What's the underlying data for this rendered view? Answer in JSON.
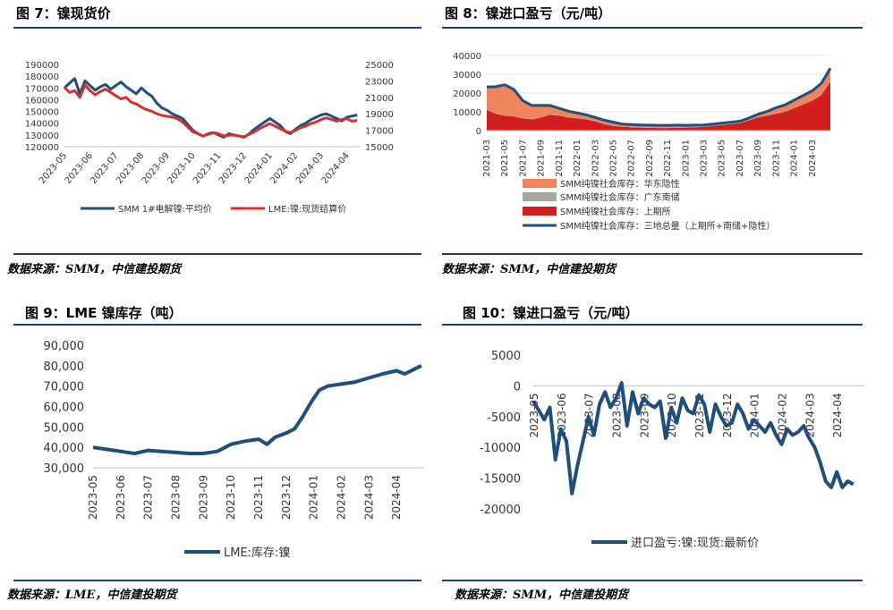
{
  "charts": [
    {
      "title": "图 7：镍现货价",
      "source": "数据来源：SMM，中信建投期货",
      "chart_data": {
        "type": "line",
        "y_left_ticks": [
          "190000",
          "180000",
          "170000",
          "160000",
          "150000",
          "140000",
          "130000",
          "120000"
        ],
        "y_right_ticks": [
          "25000",
          "23000",
          "21000",
          "19000",
          "17000",
          "15000"
        ],
        "x_ticks": [
          "2023-05",
          "2023-06",
          "2023-07",
          "2023-08",
          "2023-09",
          "2023-10",
          "2023-11",
          "2023-12",
          "2024-01",
          "2024-02",
          "2024-03",
          "2024-04"
        ],
        "ylim_left": [
          120000,
          190000
        ],
        "ylim_right": [
          15000,
          25000
        ],
        "series": [
          {
            "name": "SMM 1#电解镍:平均价",
            "axis": "left",
            "color": "#1f4e79",
            "x": [
              0,
              0.2,
              0.4,
              0.6,
              0.8,
              1.0,
              1.2,
              1.4,
              1.6,
              1.8,
              2.0,
              2.2,
              2.4,
              2.6,
              2.8,
              3.0,
              3.2,
              3.4,
              3.6,
              3.8,
              4.0,
              4.2,
              4.4,
              4.6,
              4.8,
              5.0,
              5.2,
              5.4,
              5.6,
              5.8,
              6.0,
              6.2,
              6.4,
              6.6,
              6.8,
              7.0,
              7.2,
              7.4,
              7.6,
              7.8,
              8.0,
              8.2,
              8.4,
              8.6,
              8.8,
              9.0,
              9.2,
              9.4,
              9.6,
              9.8,
              10.0,
              10.2,
              10.4,
              10.6,
              10.8,
              11.0,
              11.2,
              11.4
            ],
            "values": [
              170000,
              174000,
              178000,
              165000,
              176000,
              172000,
              168000,
              171000,
              173000,
              169000,
              172000,
              175000,
              171000,
              168000,
              165000,
              170000,
              166000,
              163000,
              157000,
              153000,
              151000,
              148000,
              146000,
              144000,
              139000,
              134000,
              131000,
              129000,
              131000,
              132000,
              130000,
              128000,
              131000,
              130000,
              129000,
              128000,
              131000,
              135000,
              138000,
              141000,
              144000,
              141000,
              138000,
              133000,
              131000,
              135000,
              138000,
              140000,
              143000,
              145000,
              147000,
              148000,
              146000,
              144000,
              142000,
              145000,
              146000,
              147000
            ]
          },
          {
            "name": "LME:镍:现货结算价",
            "axis": "right",
            "color": "#d62f2f",
            "x": [
              0,
              0.2,
              0.4,
              0.6,
              0.8,
              1.0,
              1.2,
              1.4,
              1.6,
              1.8,
              2.0,
              2.2,
              2.4,
              2.6,
              2.8,
              3.0,
              3.2,
              3.4,
              3.6,
              3.8,
              4.0,
              4.2,
              4.4,
              4.6,
              4.8,
              5.0,
              5.2,
              5.4,
              5.6,
              5.8,
              6.0,
              6.2,
              6.4,
              6.6,
              6.8,
              7.0,
              7.2,
              7.4,
              7.6,
              7.8,
              8.0,
              8.2,
              8.4,
              8.6,
              8.8,
              9.0,
              9.2,
              9.4,
              9.6,
              9.8,
              10.0,
              10.2,
              10.4,
              10.6,
              10.8,
              11.0,
              11.2,
              11.4
            ],
            "values": [
              22200,
              21600,
              21800,
              21000,
              22500,
              21800,
              21300,
              21700,
              22000,
              21600,
              21200,
              20800,
              21000,
              20400,
              20200,
              19800,
              19500,
              19300,
              19000,
              18800,
              18700,
              18600,
              18400,
              18000,
              17400,
              16800,
              16600,
              16300,
              16500,
              16700,
              16600,
              16300,
              16400,
              16400,
              16300,
              16200,
              16500,
              16800,
              17200,
              17500,
              17800,
              17500,
              17200,
              16900,
              16700,
              17000,
              17300,
              17500,
              17800,
              18000,
              18300,
              18500,
              18300,
              18100,
              18300,
              18400,
              18100,
              18200
            ]
          }
        ]
      }
    },
    {
      "title": "图 8：镍进口盈亏（元/吨）",
      "source": "数据来源：SMM，中信建投期货",
      "chart_data": {
        "type": "area",
        "y_ticks": [
          "40000",
          "30000",
          "20000",
          "10000",
          "0"
        ],
        "ylim": [
          0,
          40000
        ],
        "x_ticks": [
          "2021-03",
          "2021-05",
          "2021-07",
          "2021-09",
          "2021-11",
          "2022-01",
          "2022-03",
          "2022-05",
          "2022-07",
          "2022-09",
          "2022-11",
          "2023-01",
          "2023-03",
          "2023-05",
          "2023-07",
          "2023-09",
          "2023-11",
          "2024-01",
          "2024-03"
        ],
        "x": [
          0,
          0.5,
          1,
          1.5,
          2,
          2.5,
          3,
          3.5,
          4,
          4.5,
          5,
          5.5,
          6,
          6.5,
          7,
          7.5,
          8,
          8.5,
          9,
          9.5,
          10,
          10.5,
          11,
          11.5,
          12,
          12.5,
          13,
          13.5,
          14,
          14.5,
          15,
          15.5,
          16,
          16.5,
          17,
          17.5,
          18,
          18.5,
          19
        ],
        "series": [
          {
            "name": "SMM纯镍社会库存：华东隐性",
            "kind": "area",
            "color": "#f0845a",
            "values": [
              12000,
              14000,
              16000,
              14000,
              9000,
              7000,
              6000,
              4500,
              3500,
              3000,
              2500,
              2000,
              1500,
              1500,
              1500,
              1000,
              1000,
              1000,
              1000,
              1000,
              1000,
              1000,
              800,
              800,
              800,
              800,
              800,
              800,
              800,
              1000,
              1500,
              2000,
              3000,
              3500,
              4000,
              4500,
              5000,
              6000,
              7000
            ]
          },
          {
            "name": "SMM纯镍社会库存：广东南储",
            "kind": "area",
            "color": "#a6a6a6",
            "values": [
              200,
              200,
              200,
              200,
              200,
              200,
              200,
              200,
              200,
              200,
              200,
              200,
              200,
              200,
              200,
              200,
              200,
              200,
              200,
              200,
              200,
              200,
              200,
              200,
              200,
              200,
              200,
              200,
              200,
              200,
              200,
              200,
              200,
              200,
              200,
              200,
              200,
              200,
              200
            ]
          },
          {
            "name": "SMM纯镍社会库存：上期所",
            "kind": "area",
            "color": "#d11f1f",
            "values": [
              11000,
              9000,
              8000,
              7500,
              6500,
              6000,
              7000,
              8500,
              8000,
              7000,
              6500,
              6000,
              5000,
              3500,
              2500,
              2000,
              1800,
              1600,
              1500,
              1400,
              1400,
              1500,
              1600,
              1700,
              2000,
              2500,
              3000,
              3500,
              4000,
              5500,
              7000,
              8000,
              9000,
              10000,
              12000,
              14000,
              16000,
              19000,
              26000
            ]
          },
          {
            "name": "SMM纯镍社会库存：三地总量（上期所+南储+隐性）",
            "kind": "line",
            "color": "#1f4e79",
            "values": [
              23200,
              23400,
              24400,
              21900,
              15900,
              13400,
              13400,
              13400,
              11900,
              10400,
              9400,
              8400,
              7000,
              5500,
              4500,
              3500,
              3200,
              3000,
              2900,
              2800,
              2800,
              2900,
              2800,
              2900,
              3000,
              3500,
              4000,
              4500,
              5000,
              6700,
              8700,
              10200,
              12200,
              13700,
              16200,
              18700,
              21200,
              25200,
              33200
            ]
          }
        ]
      }
    },
    {
      "title": "图 9：LME 镍库存（吨）",
      "source": "数据来源：LME，中信建投期货",
      "chart_data": {
        "type": "line",
        "y_ticks": [
          "90,000",
          "80,000",
          "70,000",
          "60,000",
          "50,000",
          "40,000",
          "30,000"
        ],
        "ylim": [
          30000,
          90000
        ],
        "x_ticks": [
          "2023-05",
          "2023-06",
          "2023-07",
          "2023-08",
          "2023-09",
          "2023-10",
          "2023-11",
          "2023-12",
          "2024-01",
          "2024-02",
          "2024-03",
          "2024-04"
        ],
        "series": [
          {
            "name": "LME:库存:镍",
            "color": "#1f4e79",
            "x": [
              0,
              0.5,
              1,
              1.5,
              2,
              2.5,
              3,
              3.5,
              4,
              4.5,
              5,
              5.5,
              6,
              6.3,
              6.6,
              7,
              7.3,
              7.6,
              7.9,
              8.2,
              8.5,
              9,
              9.5,
              10,
              10.5,
              11,
              11.3,
              11.6,
              11.9
            ],
            "values": [
              40000,
              39000,
              38000,
              37000,
              38500,
              38000,
              37500,
              37000,
              37000,
              38000,
              41500,
              43000,
              44000,
              41500,
              45000,
              47000,
              49000,
              55000,
              62000,
              68000,
              70000,
              71000,
              72000,
              74000,
              76000,
              77500,
              76000,
              78000,
              80000
            ]
          }
        ]
      }
    },
    {
      "title": "图 10：镍进口盈亏（元/吨）",
      "source": "数据来源：SMM，中信建投期货",
      "chart_data": {
        "type": "line",
        "y_ticks": [
          "5000",
          "0",
          "-5000",
          "-10000",
          "-15000",
          "-20000"
        ],
        "ylim": [
          -20000,
          5000
        ],
        "x_ticks": [
          "2023-05",
          "2023-06",
          "2023-07",
          "2023-08",
          "2023-09",
          "2023-10",
          "2023-11",
          "2023-12",
          "2024-01",
          "2024-02",
          "2024-03",
          "2024-04"
        ],
        "series": [
          {
            "name": "进口盈亏:镍:现货:最新价",
            "color": "#1f4e79",
            "x": [
              0,
              0.2,
              0.4,
              0.6,
              0.8,
              1.0,
              1.2,
              1.4,
              1.6,
              1.8,
              2.0,
              2.2,
              2.4,
              2.6,
              2.8,
              3.0,
              3.2,
              3.4,
              3.6,
              3.8,
              4.0,
              4.2,
              4.4,
              4.6,
              4.8,
              5.0,
              5.2,
              5.4,
              5.6,
              5.8,
              6.0,
              6.2,
              6.4,
              6.6,
              6.8,
              7.0,
              7.2,
              7.4,
              7.6,
              7.8,
              8.0,
              8.2,
              8.4,
              8.6,
              8.8,
              9.0,
              9.2,
              9.4,
              9.6,
              9.8,
              10.0,
              10.2,
              10.4,
              10.6,
              10.8,
              11.0,
              11.2,
              11.4,
              11.6
            ],
            "values": [
              -2500,
              -4000,
              -5500,
              -3500,
              -12000,
              -7000,
              -9000,
              -17500,
              -13000,
              -9000,
              -5000,
              -8000,
              -3000,
              -1000,
              -3500,
              -2000,
              500,
              -6500,
              -1000,
              -4500,
              -2000,
              -3000,
              -3500,
              -2500,
              -8500,
              -3500,
              -6000,
              -2000,
              -4000,
              -4500,
              -1500,
              -3000,
              -7500,
              -3000,
              -5000,
              -6500,
              -6000,
              -3000,
              -4500,
              -7000,
              -5500,
              -6500,
              -7500,
              -6000,
              -8000,
              -9500,
              -7000,
              -8000,
              -7500,
              -6500,
              -8500,
              -10000,
              -12500,
              -15500,
              -16500,
              -14000,
              -16500,
              -15500,
              -16000
            ]
          }
        ]
      }
    }
  ]
}
